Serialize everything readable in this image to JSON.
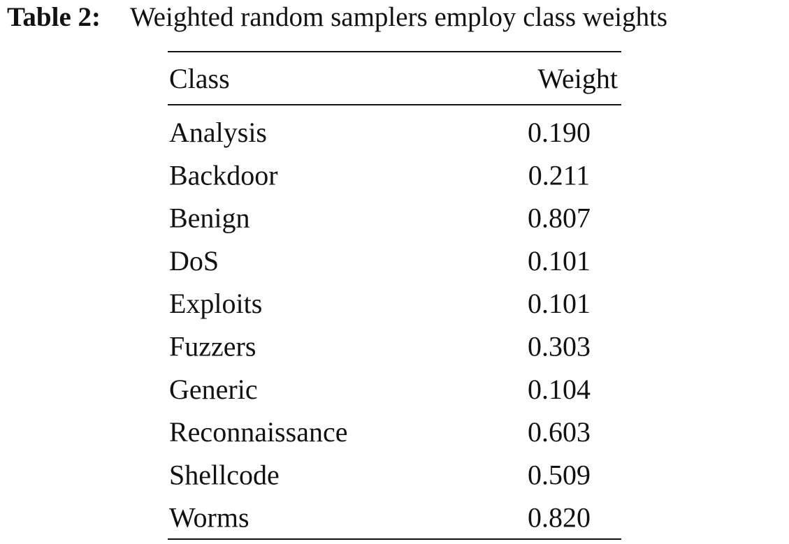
{
  "caption": {
    "label": "Table 2:",
    "text": "Weighted random samplers employ class weights"
  },
  "table": {
    "header": [
      "Class",
      "Weight"
    ],
    "rows": [
      [
        "Analysis",
        "0.190"
      ],
      [
        "Backdoor",
        "0.211"
      ],
      [
        "Benign",
        "0.807"
      ],
      [
        "DoS",
        "0.101"
      ],
      [
        "Exploits",
        "0.101"
      ],
      [
        "Fuzzers",
        "0.303"
      ],
      [
        "Generic",
        "0.104"
      ],
      [
        "Reconnaissance",
        "0.603"
      ],
      [
        "Shellcode",
        "0.509"
      ],
      [
        "Worms",
        "0.820"
      ]
    ]
  }
}
